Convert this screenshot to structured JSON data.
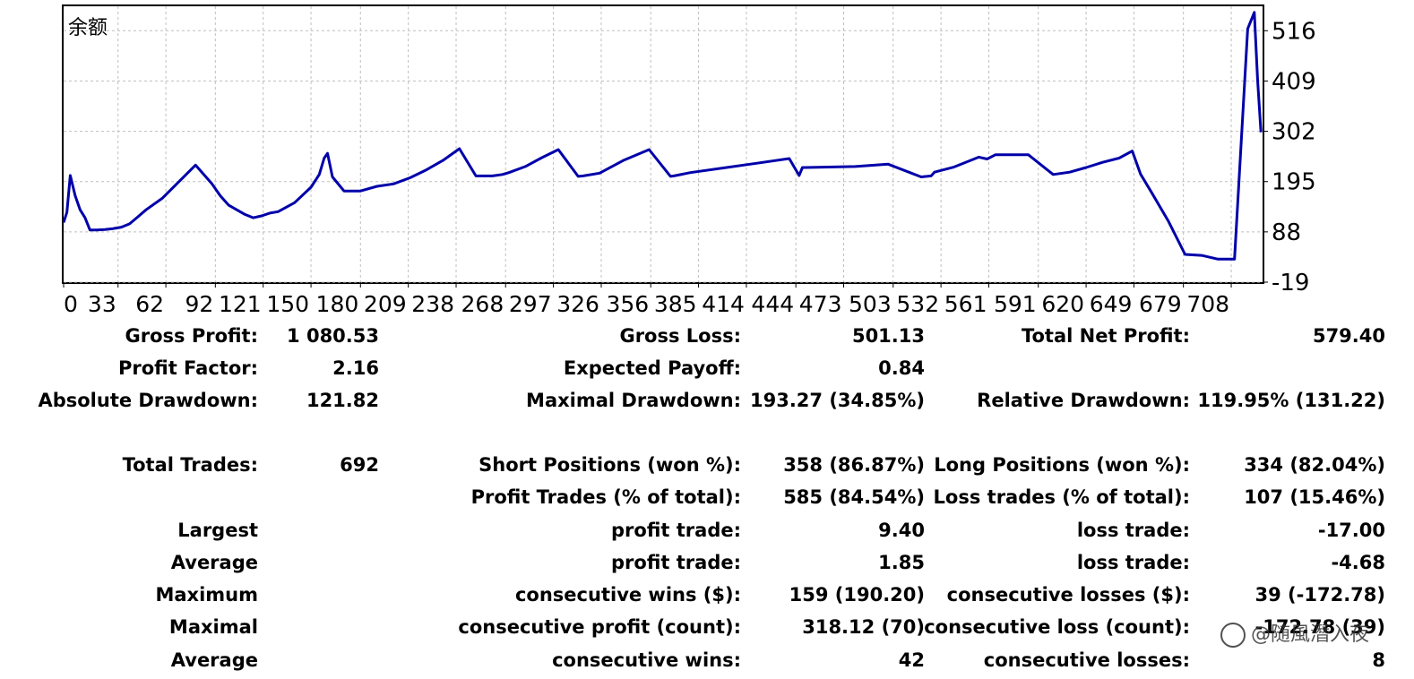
{
  "chart_data": {
    "type": "line",
    "title": "余额",
    "xlabel": "",
    "ylabel": "",
    "x_ticks": [
      0,
      33,
      62,
      92,
      121,
      150,
      180,
      209,
      238,
      268,
      297,
      326,
      356,
      385,
      414,
      444,
      473,
      503,
      532,
      561,
      591,
      620,
      649,
      679,
      708
    ],
    "y_ticks": [
      516,
      409,
      302,
      195,
      88,
      -19
    ],
    "xlim": [
      0,
      727
    ],
    "ylim": [
      -19,
      568
    ],
    "grid": true,
    "line_color": "#0000aa",
    "series": [
      {
        "x": [
          0,
          2,
          4,
          7,
          10,
          13,
          16,
          20,
          25,
          30,
          35,
          40,
          45,
          50,
          60,
          70,
          80,
          85,
          90,
          95,
          100,
          105,
          110,
          115,
          120,
          125,
          130,
          140,
          150,
          155,
          158,
          160,
          163,
          170,
          180,
          190,
          200,
          210,
          220,
          230,
          240,
          250,
          260,
          266,
          270,
          280,
          290,
          300,
          312,
          315,
          325,
          340,
          355,
          368,
          370,
          380,
          400,
          420,
          440,
          446,
          448,
          450,
          480,
          500,
          520,
          526,
          528,
          540,
          555,
          560,
          565,
          585,
          600,
          610,
          620,
          630,
          640,
          648,
          653,
          660,
          670,
          680,
          690,
          700,
          710,
          718,
          722,
          724,
          726
        ],
        "y": [
          108,
          130,
          208,
          165,
          135,
          118,
          92,
          92,
          93,
          95,
          98,
          105,
          120,
          135,
          160,
          195,
          230,
          210,
          190,
          165,
          145,
          135,
          125,
          118,
          122,
          128,
          131,
          150,
          183,
          210,
          245,
          255,
          205,
          175,
          175,
          185,
          190,
          203,
          220,
          240,
          265,
          207,
          207,
          210,
          214,
          227,
          246,
          263,
          206,
          207,
          213,
          241,
          263,
          206,
          207,
          214,
          224,
          234,
          244,
          208,
          225,
          225,
          227,
          232,
          205,
          207,
          215,
          226,
          247,
          243,
          252,
          252,
          210,
          215,
          225,
          236,
          245,
          260,
          211,
          170,
          110,
          40,
          38,
          30,
          30,
          520,
          555,
          410,
          300
        ]
      }
    ]
  },
  "stats": {
    "gross_profit_label": "Gross Profit:",
    "gross_profit": "1 080.53",
    "gross_loss_label": "Gross Loss:",
    "gross_loss": "501.13",
    "total_net_profit_label": "Total Net Profit:",
    "total_net_profit": "579.40",
    "profit_factor_label": "Profit Factor:",
    "profit_factor": "2.16",
    "expected_payoff_label": "Expected Payoff:",
    "expected_payoff": "0.84",
    "absolute_drawdown_label": "Absolute Drawdown:",
    "absolute_drawdown": "121.82",
    "maximal_drawdown_label": "Maximal Drawdown:",
    "maximal_drawdown": "193.27 (34.85%)",
    "relative_drawdown_label": "Relative Drawdown:",
    "relative_drawdown": "119.95% (131.22)",
    "total_trades_label": "Total Trades:",
    "total_trades": "692",
    "short_positions_label": "Short Positions (won %):",
    "short_positions": "358 (86.87%)",
    "long_positions_label": "Long Positions (won %):",
    "long_positions": "334 (82.04%)",
    "profit_trades_label": "Profit Trades (% of total):",
    "profit_trades": "585 (84.54%)",
    "loss_trades_label": "Loss trades (% of total):",
    "loss_trades": "107 (15.46%)",
    "largest_label": "Largest",
    "largest_profit_label": "profit trade:",
    "largest_profit": "9.40",
    "largest_loss_label": "loss trade:",
    "largest_loss": "-17.00",
    "average_label": "Average",
    "average_profit_label": "profit trade:",
    "average_profit": "1.85",
    "average_loss_label": "loss trade:",
    "average_loss": "-4.68",
    "maximum_label": "Maximum",
    "max_consec_wins_label": "consecutive wins ($):",
    "max_consec_wins": "159 (190.20)",
    "max_consec_losses_label": "consecutive losses ($):",
    "max_consec_losses": "39 (-172.78)",
    "maximal_label": "Maximal",
    "maximal_consec_profit_label": "consecutive profit (count):",
    "maximal_consec_profit": "318.12 (70)",
    "maximal_consec_loss_label": "consecutive loss (count):",
    "maximal_consec_loss": "-172.78 (39)",
    "average2_label": "Average",
    "avg_consec_wins_label": "consecutive wins:",
    "avg_consec_wins": "42",
    "avg_consec_losses_label": "consecutive losses:",
    "avg_consec_losses": "8"
  },
  "watermark": "@随風潛入夜"
}
